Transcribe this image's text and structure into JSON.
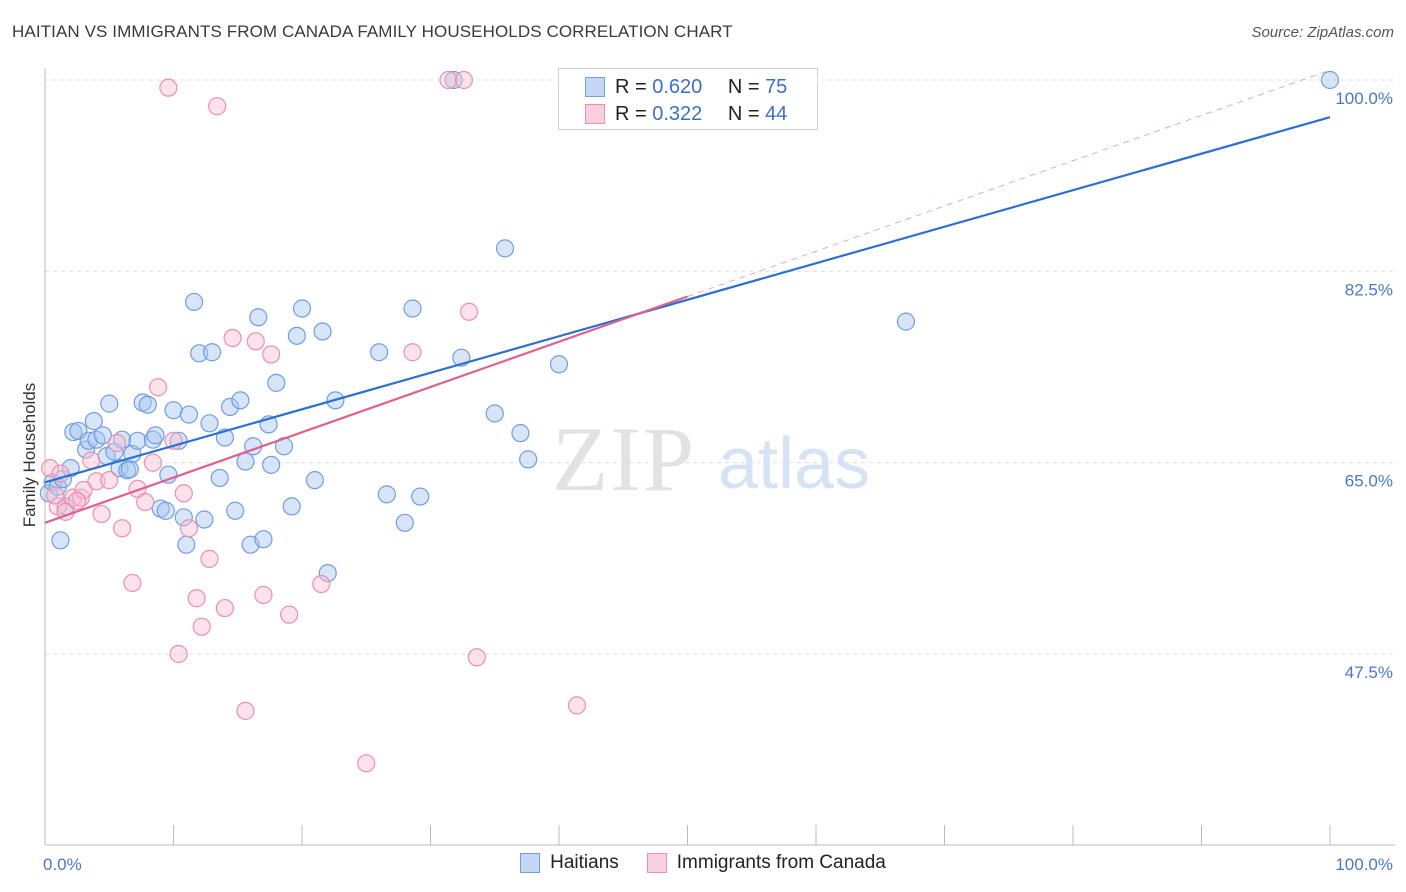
{
  "header": {
    "title": "HAITIAN VS IMMIGRANTS FROM CANADA FAMILY HOUSEHOLDS CORRELATION CHART",
    "source": "Source: ZipAtlas.com"
  },
  "watermark": {
    "zip": "ZIP",
    "atlas": "atlas"
  },
  "legend": {
    "rows": [
      {
        "r_label": "R =",
        "r_value": "0.620",
        "n_label": "N =",
        "n_value": "75",
        "color": "#a8c6ef",
        "border": "#6f9fe0"
      },
      {
        "r_label": "R =",
        "r_value": "0.322",
        "n_label": "N =",
        "n_value": "44",
        "color": "#f6bfd2",
        "border": "#ec8fb0"
      }
    ]
  },
  "bottom_legend": {
    "items": [
      {
        "label": "Haitians",
        "color": "#a8c6ef",
        "border": "#6f9fe0"
      },
      {
        "label": "Immigrants from Canada",
        "color": "#f6bfd2",
        "border": "#ec8fb0"
      }
    ]
  },
  "chart_data": {
    "type": "scatter",
    "title": "HAITIAN VS IMMIGRANTS FROM CANADA FAMILY HOUSEHOLDS CORRELATION CHART",
    "xlabel": "",
    "ylabel": "Family Households",
    "xlim": [
      0,
      100
    ],
    "ylim": [
      30,
      102
    ],
    "x_tick_labels": [
      {
        "value": 0,
        "label": "0.0%"
      },
      {
        "value": 100,
        "label": "100.0%"
      }
    ],
    "y_ticks": [
      {
        "value": 47.5,
        "label": "47.5%"
      },
      {
        "value": 65.0,
        "label": "65.0%"
      },
      {
        "value": 82.5,
        "label": "82.5%"
      },
      {
        "value": 100.0,
        "label": "100.0%"
      }
    ],
    "x_minor_ticks": [
      10,
      20,
      30,
      40,
      50,
      60,
      70,
      80,
      90,
      100
    ],
    "grid": true,
    "legend_position": "top-center",
    "series": [
      {
        "name": "Haitians",
        "color": "#6f9fe0",
        "fill": "rgba(168,198,239,0.45)",
        "trend": {
          "x0": 0,
          "y0": 63.2,
          "x1": 100,
          "y1": 96.6,
          "color": "#2e6fd0"
        },
        "points": [
          [
            0.3,
            62.2
          ],
          [
            0.6,
            63.2
          ],
          [
            1.0,
            62.8
          ],
          [
            1.4,
            63.5
          ],
          [
            1.6,
            61.0
          ],
          [
            2.0,
            64.5
          ],
          [
            1.2,
            57.9
          ],
          [
            2.2,
            67.8
          ],
          [
            2.6,
            67.9
          ],
          [
            3.2,
            66.2
          ],
          [
            3.4,
            67.0
          ],
          [
            3.8,
            68.8
          ],
          [
            4.0,
            67.1
          ],
          [
            4.5,
            67.5
          ],
          [
            4.8,
            65.6
          ],
          [
            5.0,
            70.4
          ],
          [
            5.4,
            66.0
          ],
          [
            5.8,
            64.5
          ],
          [
            6.0,
            67.1
          ],
          [
            6.4,
            64.3
          ],
          [
            6.6,
            64.4
          ],
          [
            6.8,
            65.8
          ],
          [
            7.2,
            67.0
          ],
          [
            7.6,
            70.5
          ],
          [
            8.0,
            70.3
          ],
          [
            8.4,
            67.1
          ],
          [
            8.6,
            67.5
          ],
          [
            9.0,
            60.8
          ],
          [
            9.4,
            60.6
          ],
          [
            9.6,
            63.9
          ],
          [
            10.0,
            69.8
          ],
          [
            10.4,
            67.0
          ],
          [
            10.8,
            60.0
          ],
          [
            11.0,
            57.5
          ],
          [
            11.2,
            69.4
          ],
          [
            11.6,
            79.7
          ],
          [
            12.0,
            75.0
          ],
          [
            12.4,
            59.8
          ],
          [
            12.8,
            68.6
          ],
          [
            13.0,
            75.1
          ],
          [
            13.6,
            63.6
          ],
          [
            14.0,
            67.3
          ],
          [
            14.4,
            70.1
          ],
          [
            14.8,
            60.6
          ],
          [
            15.2,
            70.7
          ],
          [
            15.6,
            65.1
          ],
          [
            16.0,
            57.5
          ],
          [
            16.2,
            66.5
          ],
          [
            16.6,
            78.3
          ],
          [
            17.0,
            58.0
          ],
          [
            17.4,
            68.5
          ],
          [
            17.6,
            64.8
          ],
          [
            18.0,
            72.3
          ],
          [
            18.6,
            66.5
          ],
          [
            19.2,
            61.0
          ],
          [
            19.6,
            76.6
          ],
          [
            20.0,
            79.1
          ],
          [
            21.0,
            63.4
          ],
          [
            21.6,
            77.0
          ],
          [
            22.0,
            54.9
          ],
          [
            22.6,
            70.7
          ],
          [
            26.0,
            75.1
          ],
          [
            26.6,
            62.1
          ],
          [
            28.0,
            59.5
          ],
          [
            28.6,
            79.1
          ],
          [
            29.2,
            61.9
          ],
          [
            31.8,
            100.0
          ],
          [
            32.4,
            74.6
          ],
          [
            35.0,
            69.5
          ],
          [
            35.8,
            84.6
          ],
          [
            37.0,
            67.7
          ],
          [
            37.6,
            65.3
          ],
          [
            40.0,
            74.0
          ],
          [
            67.0,
            77.9
          ],
          [
            100.0,
            100.0
          ]
        ]
      },
      {
        "name": "Immigrants from Canada",
        "color": "#ec8fb0",
        "fill": "rgba(246,191,210,0.45)",
        "trend": {
          "x0": 0,
          "y0": 59.5,
          "x1": 50,
          "y1": 80.2,
          "color": "#e0608f"
        },
        "trend_extension": {
          "x0": 50,
          "y0": 80.2,
          "x1": 100,
          "y1": 100.9,
          "color": "#e9a7bf"
        },
        "points": [
          [
            0.4,
            64.5
          ],
          [
            1.0,
            61.0
          ],
          [
            1.6,
            60.5
          ],
          [
            2.2,
            61.8
          ],
          [
            2.8,
            61.8
          ],
          [
            3.6,
            65.2
          ],
          [
            4.0,
            63.3
          ],
          [
            4.4,
            60.3
          ],
          [
            5.0,
            63.4
          ],
          [
            5.6,
            66.8
          ],
          [
            6.0,
            59.0
          ],
          [
            6.8,
            54.0
          ],
          [
            7.2,
            62.6
          ],
          [
            7.8,
            61.4
          ],
          [
            8.4,
            65.0
          ],
          [
            8.8,
            71.9
          ],
          [
            9.6,
            99.3
          ],
          [
            10.0,
            67.0
          ],
          [
            10.4,
            47.5
          ],
          [
            10.8,
            62.2
          ],
          [
            11.2,
            59.0
          ],
          [
            11.8,
            52.6
          ],
          [
            12.2,
            50.0
          ],
          [
            12.8,
            56.2
          ],
          [
            13.4,
            97.6
          ],
          [
            14.0,
            51.7
          ],
          [
            14.6,
            76.4
          ],
          [
            15.6,
            42.3
          ],
          [
            16.4,
            76.1
          ],
          [
            17.0,
            52.9
          ],
          [
            17.6,
            74.9
          ],
          [
            19.0,
            51.1
          ],
          [
            21.5,
            53.9
          ],
          [
            25.0,
            37.5
          ],
          [
            28.6,
            75.1
          ],
          [
            31.4,
            100.0
          ],
          [
            32.6,
            100.0
          ],
          [
            33.0,
            78.8
          ],
          [
            33.6,
            47.2
          ],
          [
            41.4,
            42.8
          ],
          [
            1.2,
            64.0
          ],
          [
            3.0,
            62.5
          ],
          [
            0.8,
            62.0
          ],
          [
            2.5,
            61.5
          ]
        ]
      }
    ]
  }
}
